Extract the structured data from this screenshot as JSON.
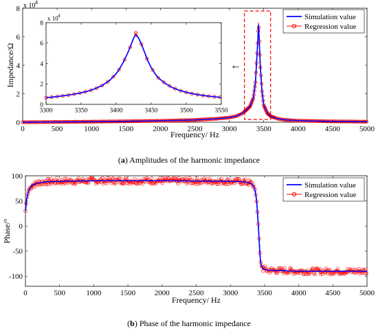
{
  "colors": {
    "simulation": "#0000ff",
    "regression": "#ff0000",
    "highlight_box": "#ff0000",
    "axis": "#000000"
  },
  "captions": {
    "a_letter": "a",
    "a_text": "Amplitudes of the harmonic impedance",
    "b_letter": "b",
    "b_text": "Phase of the harmonic impedance"
  },
  "inset_arrow": "←",
  "chart_data": [
    {
      "type": "line",
      "panel": "a",
      "xlabel": "Frequency/ Hz",
      "ylabel": "Impedance/Ω",
      "y_multiplier": "x 10",
      "y_exponent": "4",
      "xlim": [
        0,
        5000
      ],
      "ylim": [
        0,
        80000
      ],
      "xticks": [
        0,
        500,
        1000,
        1500,
        2000,
        2500,
        3000,
        3500,
        4000,
        4500,
        5000
      ],
      "yticks": [
        0,
        20000,
        40000,
        60000,
        80000
      ],
      "ytick_labels": [
        "0",
        "2",
        "4",
        "6",
        "8"
      ],
      "legend": {
        "placement": "top-right",
        "entries": [
          "Simulation value",
          "Regression value"
        ]
      },
      "highlight_region": {
        "x": [
          3220,
          3600
        ]
      },
      "series": [
        {
          "name": "Simulation value",
          "style": "line",
          "points": [
            [
              0,
              0
            ],
            [
              500,
              180
            ],
            [
              1000,
              400
            ],
            [
              1500,
              650
            ],
            [
              2000,
              1000
            ],
            [
              2500,
              1600
            ],
            [
              2800,
              2400
            ],
            [
              3000,
              3300
            ],
            [
              3100,
              4200
            ],
            [
              3200,
              6500
            ],
            [
              3300,
              11000
            ],
            [
              3350,
              17000
            ],
            [
              3380,
              28000
            ],
            [
              3400,
              45000
            ],
            [
              3415,
              58000
            ],
            [
              3425,
              68500
            ],
            [
              3435,
              58000
            ],
            [
              3450,
              40000
            ],
            [
              3475,
              22000
            ],
            [
              3500,
              12000
            ],
            [
              3550,
              6500
            ],
            [
              3600,
              4200
            ],
            [
              3700,
              2500
            ],
            [
              3800,
              1700
            ],
            [
              4000,
              1050
            ],
            [
              4500,
              600
            ],
            [
              5000,
              400
            ]
          ]
        },
        {
          "name": "Regression value",
          "style": "markers",
          "points": [
            [
              0,
              0
            ],
            [
              500,
              180
            ],
            [
              1000,
              400
            ],
            [
              1500,
              650
            ],
            [
              2000,
              1000
            ],
            [
              2500,
              1600
            ],
            [
              2800,
              2400
            ],
            [
              3000,
              3300
            ],
            [
              3100,
              4200
            ],
            [
              3200,
              6500
            ],
            [
              3300,
              11000
            ],
            [
              3350,
              17000
            ],
            [
              3380,
              28000
            ],
            [
              3400,
              45000
            ],
            [
              3415,
              58000
            ],
            [
              3425,
              70000
            ],
            [
              3435,
              58000
            ],
            [
              3450,
              40000
            ],
            [
              3475,
              22000
            ],
            [
              3500,
              12000
            ],
            [
              3550,
              6500
            ],
            [
              3600,
              4200
            ],
            [
              3700,
              2500
            ],
            [
              3800,
              1700
            ],
            [
              4000,
              1050
            ],
            [
              4500,
              600
            ],
            [
              5000,
              400
            ]
          ]
        }
      ],
      "inset": {
        "type": "line",
        "xlim": [
          3300,
          3550
        ],
        "ylim": [
          0,
          80000
        ],
        "xticks": [
          3300,
          3350,
          3400,
          3450,
          3500,
          3550
        ],
        "yticks": [
          0,
          20000,
          40000,
          60000,
          80000
        ],
        "ytick_labels": [
          "0",
          "2",
          "4",
          "6",
          "8"
        ],
        "y_multiplier": "x 10",
        "y_exponent": "4",
        "series": [
          {
            "name": "Simulation value",
            "style": "line",
            "points": [
              [
                3300,
                6500
              ],
              [
                3310,
                7200
              ],
              [
                3320,
                8000
              ],
              [
                3330,
                8900
              ],
              [
                3340,
                10000
              ],
              [
                3350,
                11300
              ],
              [
                3360,
                13000
              ],
              [
                3370,
                15300
              ],
              [
                3380,
                18500
              ],
              [
                3390,
                23000
              ],
              [
                3400,
                30000
              ],
              [
                3405,
                35000
              ],
              [
                3410,
                41000
              ],
              [
                3415,
                48000
              ],
              [
                3420,
                56000
              ],
              [
                3425,
                65000
              ],
              [
                3428,
                68000
              ],
              [
                3432,
                65000
              ],
              [
                3436,
                59000
              ],
              [
                3440,
                52000
              ],
              [
                3445,
                43000
              ],
              [
                3450,
                36000
              ],
              [
                3455,
                30500
              ],
              [
                3460,
                26000
              ],
              [
                3470,
                20500
              ],
              [
                3480,
                16500
              ],
              [
                3490,
                13800
              ],
              [
                3500,
                11800
              ],
              [
                3510,
                10300
              ],
              [
                3520,
                9100
              ],
              [
                3530,
                8200
              ],
              [
                3540,
                7400
              ],
              [
                3550,
                6800
              ]
            ]
          },
          {
            "name": "Regression value",
            "style": "markers",
            "points": [
              [
                3300,
                6500
              ],
              [
                3310,
                7200
              ],
              [
                3320,
                8000
              ],
              [
                3330,
                8900
              ],
              [
                3340,
                10000
              ],
              [
                3350,
                11300
              ],
              [
                3360,
                13000
              ],
              [
                3370,
                15300
              ],
              [
                3380,
                18500
              ],
              [
                3390,
                23000
              ],
              [
                3400,
                30000
              ],
              [
                3405,
                35000
              ],
              [
                3410,
                41000
              ],
              [
                3415,
                48000
              ],
              [
                3420,
                56000
              ],
              [
                3425,
                65000
              ],
              [
                3428,
                70000
              ],
              [
                3432,
                65000
              ],
              [
                3436,
                59000
              ],
              [
                3440,
                52000
              ],
              [
                3445,
                43000
              ],
              [
                3450,
                36000
              ],
              [
                3455,
                30500
              ],
              [
                3460,
                26000
              ],
              [
                3470,
                20500
              ],
              [
                3480,
                16500
              ],
              [
                3490,
                13800
              ],
              [
                3500,
                11800
              ],
              [
                3510,
                10300
              ],
              [
                3520,
                9100
              ],
              [
                3530,
                8200
              ],
              [
                3540,
                7400
              ],
              [
                3550,
                6800
              ]
            ]
          }
        ]
      }
    },
    {
      "type": "line",
      "panel": "b",
      "xlabel": "Frequency/ Hz",
      "ylabel": "Phase/°",
      "xlim": [
        0,
        5000
      ],
      "ylim": [
        -120,
        100
      ],
      "xticks": [
        0,
        500,
        1000,
        1500,
        2000,
        2500,
        3000,
        3500,
        4000,
        4500,
        5000
      ],
      "yticks": [
        -100,
        -50,
        0,
        50,
        100
      ],
      "legend": {
        "placement": "top-right",
        "entries": [
          "Simulation value",
          "Regression value"
        ]
      },
      "series": [
        {
          "name": "Simulation value",
          "style": "line",
          "points": [
            [
              0,
              30
            ],
            [
              20,
              55
            ],
            [
              50,
              72
            ],
            [
              100,
              82
            ],
            [
              200,
              86
            ],
            [
              300,
              88
            ],
            [
              500,
              89
            ],
            [
              1000,
              90
            ],
            [
              2000,
              90
            ],
            [
              3000,
              89
            ],
            [
              3200,
              88
            ],
            [
              3300,
              85
            ],
            [
              3340,
              80
            ],
            [
              3360,
              72
            ],
            [
              3380,
              55
            ],
            [
              3390,
              40
            ],
            [
              3400,
              20
            ],
            [
              3410,
              0
            ],
            [
              3420,
              -25
            ],
            [
              3430,
              -50
            ],
            [
              3440,
              -68
            ],
            [
              3450,
              -78
            ],
            [
              3480,
              -85
            ],
            [
              3550,
              -88
            ],
            [
              4000,
              -90
            ],
            [
              4500,
              -90
            ],
            [
              5000,
              -90
            ]
          ]
        },
        {
          "name": "Regression value",
          "style": "noisy-markers",
          "noise_amplitude": 6,
          "points": [
            [
              0,
              30
            ],
            [
              20,
              55
            ],
            [
              50,
              72
            ],
            [
              100,
              82
            ],
            [
              200,
              86
            ],
            [
              300,
              88
            ],
            [
              500,
              89
            ],
            [
              1000,
              90
            ],
            [
              2000,
              90
            ],
            [
              3000,
              89
            ],
            [
              3200,
              88
            ],
            [
              3300,
              85
            ],
            [
              3340,
              80
            ],
            [
              3360,
              72
            ],
            [
              3380,
              55
            ],
            [
              3390,
              40
            ],
            [
              3400,
              20
            ],
            [
              3410,
              0
            ],
            [
              3420,
              -25
            ],
            [
              3430,
              -50
            ],
            [
              3440,
              -68
            ],
            [
              3450,
              -78
            ],
            [
              3480,
              -85
            ],
            [
              3550,
              -88
            ],
            [
              4000,
              -90
            ],
            [
              4500,
              -90
            ],
            [
              5000,
              -90
            ]
          ]
        }
      ]
    }
  ]
}
